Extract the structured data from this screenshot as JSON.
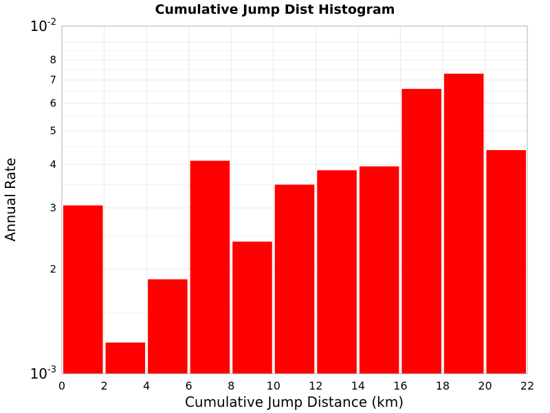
{
  "chart_data": {
    "type": "bar",
    "title": "Cumulative Jump Dist Histogram",
    "xlabel": "Cumulative Jump Distance (km)",
    "ylabel": "Annual Rate",
    "xlim": [
      0,
      22
    ],
    "ylim": [
      0.001,
      0.01
    ],
    "yscale": "log",
    "grid": true,
    "bar_color": "#ff0000",
    "bin_width": 2,
    "x_ticks": [
      0,
      2,
      4,
      6,
      8,
      10,
      12,
      14,
      16,
      18,
      20,
      22
    ],
    "y_minor_ticks": [
      {
        "value": 0.002,
        "label": "2"
      },
      {
        "value": 0.003,
        "label": "3"
      },
      {
        "value": 0.004,
        "label": "4"
      },
      {
        "value": 0.005,
        "label": "5"
      },
      {
        "value": 0.006,
        "label": "6"
      },
      {
        "value": 0.007,
        "label": "7"
      },
      {
        "value": 0.008,
        "label": "8"
      }
    ],
    "y_major_ticks": [
      {
        "value": 0.001,
        "base": "10",
        "exp": "-3"
      },
      {
        "value": 0.01,
        "base": "10",
        "exp": "-2"
      }
    ],
    "bins": [
      {
        "x": 1,
        "value": 0.00305
      },
      {
        "x": 3,
        "value": 0.00123
      },
      {
        "x": 5,
        "value": 0.00187
      },
      {
        "x": 7,
        "value": 0.0041
      },
      {
        "x": 9,
        "value": 0.0024
      },
      {
        "x": 11,
        "value": 0.0035
      },
      {
        "x": 13,
        "value": 0.00385
      },
      {
        "x": 15,
        "value": 0.00395
      },
      {
        "x": 17,
        "value": 0.0066
      },
      {
        "x": 19,
        "value": 0.0073
      },
      {
        "x": 21,
        "value": 0.0044
      }
    ]
  }
}
